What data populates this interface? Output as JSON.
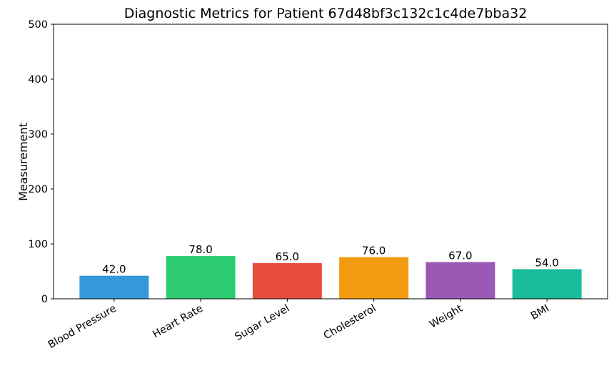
{
  "chart_data": {
    "type": "bar",
    "title": "Diagnostic Metrics for Patient 67d48bf3c132c1c4de7bba32",
    "xlabel": "",
    "ylabel": "Measurement",
    "categories": [
      "Blood Pressure",
      "Heart Rate",
      "Sugar Level",
      "Cholesterol",
      "Weight",
      "BMI"
    ],
    "values": [
      42.0,
      78.0,
      65.0,
      76.0,
      67.0,
      54.0
    ],
    "value_labels": [
      "42.0",
      "78.0",
      "65.0",
      "76.0",
      "67.0",
      "54.0"
    ],
    "colors": [
      "#3498db",
      "#2ecc71",
      "#e74c3c",
      "#f39c12",
      "#9b59b6",
      "#1abc9c"
    ],
    "ylim": [
      0,
      500
    ],
    "yticks": [
      0,
      100,
      200,
      300,
      400,
      500
    ],
    "grid": false,
    "legend": "none"
  }
}
